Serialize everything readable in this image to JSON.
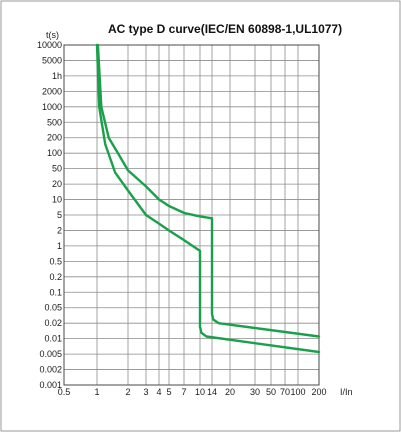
{
  "chart_data": {
    "type": "line",
    "title": "AC type D curve(IEC/EN 60898-1,UL1077)",
    "ylabel": "t(s)",
    "xlabel": "I/In",
    "x_scale": "log",
    "y_scale": "log",
    "xlim": [
      0.5,
      200
    ],
    "ylim": [
      0.001,
      10000
    ],
    "grid": true,
    "x_ticks": [
      {
        "value": 0.5,
        "label": "0.5"
      },
      {
        "value": 1,
        "label": "1"
      },
      {
        "value": 2,
        "label": "2"
      },
      {
        "value": 3,
        "label": "3"
      },
      {
        "value": 4,
        "label": "4"
      },
      {
        "value": 5,
        "label": "5"
      },
      {
        "value": 7,
        "label": "7"
      },
      {
        "value": 10,
        "label": "10"
      },
      {
        "value": 14,
        "label": "14"
      },
      {
        "value": 20,
        "label": "20"
      },
      {
        "value": 30,
        "label": "30"
      },
      {
        "value": 50,
        "label": "50"
      },
      {
        "value": 70,
        "label": "70"
      },
      {
        "value": 100,
        "label": "100"
      },
      {
        "value": 200,
        "label": "200"
      }
    ],
    "y_ticks": [
      {
        "value": 10000,
        "label": "10000"
      },
      {
        "value": 5000,
        "label": "5000"
      },
      {
        "value": 3600,
        "label": "1h"
      },
      {
        "value": 2000,
        "label": "2000"
      },
      {
        "value": 1000,
        "label": "1000"
      },
      {
        "value": 500,
        "label": "500"
      },
      {
        "value": 200,
        "label": "200"
      },
      {
        "value": 100,
        "label": "100"
      },
      {
        "value": 50,
        "label": "50"
      },
      {
        "value": 20,
        "label": "20"
      },
      {
        "value": 10,
        "label": "10"
      },
      {
        "value": 5,
        "label": "5"
      },
      {
        "value": 2,
        "label": "2"
      },
      {
        "value": 1,
        "label": "1"
      },
      {
        "value": 0.5,
        "label": "0.5"
      },
      {
        "value": 0.2,
        "label": "0.2"
      },
      {
        "value": 0.1,
        "label": "0.1"
      },
      {
        "value": 0.05,
        "label": "0.05"
      },
      {
        "value": 0.02,
        "label": "0.02"
      },
      {
        "value": 0.01,
        "label": "0.01"
      },
      {
        "value": 0.005,
        "label": "0.005"
      },
      {
        "value": 0.002,
        "label": "0.002"
      },
      {
        "value": 0.001,
        "label": "0.001"
      }
    ],
    "x_grid": [
      0.5,
      1,
      2,
      3,
      4,
      5,
      7,
      10,
      14,
      20,
      30,
      50,
      70,
      100,
      200
    ],
    "y_grid": [
      10000,
      5000,
      3600,
      2000,
      1000,
      500,
      200,
      100,
      50,
      20,
      10,
      5,
      2,
      1,
      0.5,
      0.2,
      0.1,
      0.05,
      0.02,
      0.01,
      0.005,
      0.002,
      0.001
    ],
    "curve_color": "#1aa04a",
    "series": [
      {
        "points": [
          [
            1.02,
            10000
          ],
          [
            1.1,
            1000
          ],
          [
            1.3,
            200
          ],
          [
            1.6,
            100
          ],
          [
            2.0,
            45
          ],
          [
            3.0,
            18
          ],
          [
            4.0,
            10
          ],
          [
            5.0,
            7.5
          ],
          [
            7.0,
            5.5
          ],
          [
            10.0,
            4.6
          ],
          [
            14.0,
            4.1
          ],
          [
            14.0,
            0.035
          ],
          [
            14.3,
            0.025
          ],
          [
            16.0,
            0.02
          ],
          [
            200,
            0.011
          ]
        ]
      },
      {
        "points": [
          [
            1.0,
            10000
          ],
          [
            1.05,
            1000
          ],
          [
            1.2,
            150
          ],
          [
            1.5,
            40
          ],
          [
            2.0,
            15
          ],
          [
            3.0,
            5
          ],
          [
            4.0,
            3
          ],
          [
            5.0,
            2
          ],
          [
            7.0,
            1.3
          ],
          [
            10.0,
            0.8
          ],
          [
            10.0,
            0.017
          ],
          [
            10.4,
            0.013
          ],
          [
            12.0,
            0.011
          ],
          [
            200,
            0.0055
          ]
        ]
      }
    ]
  }
}
